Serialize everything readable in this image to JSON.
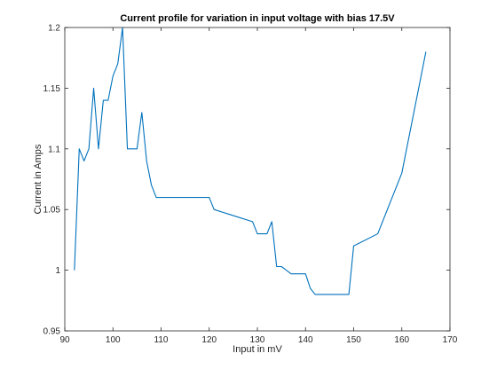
{
  "chart_data": {
    "type": "line",
    "title": "Current profile for variation in input voltage with bias 17.5V",
    "xlabel": "Input in mV",
    "ylabel": "Current in Amps",
    "xlim": [
      90,
      170
    ],
    "ylim": [
      0.95,
      1.2
    ],
    "xticks": [
      90,
      100,
      110,
      120,
      130,
      140,
      150,
      160,
      170
    ],
    "yticks": [
      0.95,
      1,
      1.05,
      1.1,
      1.15,
      1.2
    ],
    "xtick_labels": [
      "90",
      "100",
      "110",
      "120",
      "130",
      "140",
      "150",
      "160",
      "170"
    ],
    "ytick_labels": [
      "0.95",
      "1",
      "1.05",
      "1.1",
      "1.15",
      "1.2"
    ],
    "grid": false,
    "line_color": "#0072BD",
    "series": [
      {
        "x": [
          92,
          93,
          94,
          95,
          96,
          97,
          98,
          99,
          100,
          101,
          102,
          103,
          104,
          105,
          106,
          107,
          108,
          109,
          110,
          115,
          120,
          121,
          125,
          129,
          130,
          131,
          132,
          133,
          134,
          135,
          136,
          137,
          138,
          139,
          140,
          141,
          142,
          145,
          149,
          150,
          155,
          160,
          165
        ],
        "y": [
          1.0,
          1.1,
          1.09,
          1.1,
          1.15,
          1.1,
          1.14,
          1.14,
          1.16,
          1.17,
          1.2,
          1.1,
          1.1,
          1.1,
          1.13,
          1.09,
          1.07,
          1.06,
          1.06,
          1.06,
          1.06,
          1.05,
          1.045,
          1.04,
          1.03,
          1.03,
          1.03,
          1.04,
          1.003,
          1.003,
          1.0,
          0.997,
          0.997,
          0.997,
          0.997,
          0.985,
          0.98,
          0.98,
          0.98,
          1.02,
          1.03,
          1.08,
          1.18
        ]
      }
    ]
  }
}
